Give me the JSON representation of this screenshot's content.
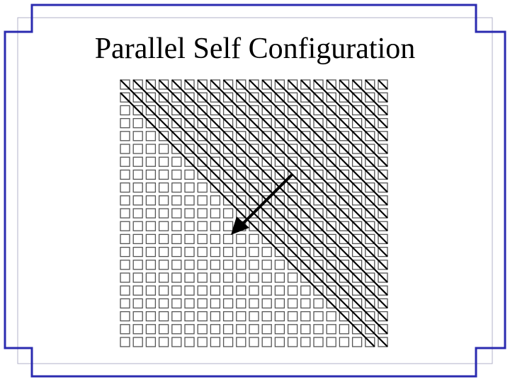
{
  "slide": {
    "title": "Parallel Self Configuration"
  },
  "diagram": {
    "grid_rows": 21,
    "grid_cols": 21,
    "configured_anti_diagonals": [
      19,
      20,
      21,
      22,
      23,
      24,
      25,
      26,
      27,
      28,
      29,
      30,
      31,
      32,
      33,
      34,
      35,
      36,
      37,
      38,
      39,
      40
    ],
    "propagation_direction": "toward-bottom-left"
  },
  "colors": {
    "frame": "#2b2bb0",
    "frame_inner": "#b0b0c8",
    "cell_stroke": "#555555",
    "line": "#000000",
    "title": "#000000"
  }
}
